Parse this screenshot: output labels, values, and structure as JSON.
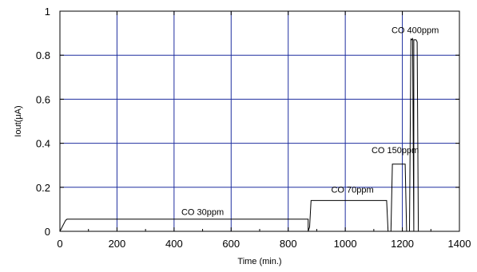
{
  "chart_data": {
    "type": "line",
    "xlabel": "Time (min.)",
    "ylabel": "Iout(μA)",
    "xlim": [
      0,
      1400
    ],
    "ylim": [
      0,
      1
    ],
    "xticks": [
      0,
      200,
      400,
      600,
      800,
      1000,
      1200,
      1400
    ],
    "yticks": [
      0,
      0.2,
      0.4,
      0.6,
      0.8,
      1
    ],
    "ytick_labels": [
      "0",
      "0.2",
      "0.4",
      "0.6",
      "0.8",
      "1"
    ],
    "grid": true,
    "colors": {
      "grid": "#1f2f9f",
      "line": "#000000",
      "axis": "#000000"
    },
    "series": [
      {
        "x": [
          0,
          20,
          25,
          870,
          870,
          875,
          880,
          1145,
          1150,
          1160,
          1165,
          1210,
          1215,
          1225,
          1230,
          1232,
          1236,
          1240,
          1240,
          1248,
          1252,
          1256
        ],
        "y": [
          0,
          0.05,
          0.055,
          0.055,
          0,
          0.02,
          0.14,
          0.14,
          0,
          0,
          0.305,
          0.305,
          0,
          0,
          0.875,
          0.87,
          0.875,
          0,
          0.87,
          0.87,
          0.86,
          0
        ]
      }
    ],
    "annotations": [
      {
        "text": "CO 30ppm",
        "x": 500,
        "y": 0.075
      },
      {
        "text": "CO 70ppm",
        "x": 1025,
        "y": 0.175
      },
      {
        "text": "CO 150ppm",
        "x": 1175,
        "y": 0.355
      },
      {
        "text": "CO 400ppm",
        "x": 1245,
        "y": 0.9
      }
    ]
  }
}
